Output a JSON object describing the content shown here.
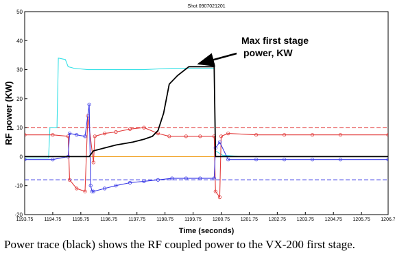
{
  "chart_data": {
    "type": "line",
    "title": "Shot 0907021201",
    "xlabel": "Time (seconds)",
    "ylabel": "RF power (KW)",
    "xlim": [
      1193.75,
      1206.7
    ],
    "ylim": [
      -20,
      50
    ],
    "x_ticks": [
      "1193.75",
      "1194.75",
      "1195.75",
      "1196.75",
      "1197.75",
      "1198.75",
      "1199.75",
      "1200.75",
      "1201.75",
      "1202.75",
      "1203.75",
      "1204.75",
      "1205.75",
      "1206.7"
    ],
    "y_ticks": [
      -20,
      -10,
      0,
      10,
      20,
      30,
      40,
      50
    ],
    "grid": false,
    "colors": {
      "black": "#000000",
      "cyan": "#33e0e6",
      "red": "#e23b3b",
      "blue": "#3a3ae6",
      "orange": "#f0a020"
    },
    "series": [
      {
        "color": "black",
        "style": "solid",
        "x": [
          1193.75,
          1195.3,
          1196.05,
          1196.2,
          1196.6,
          1197.0,
          1197.6,
          1198.0,
          1198.3,
          1198.5,
          1198.7,
          1198.9,
          1199.2,
          1199.6,
          1200.0,
          1200.3,
          1200.5,
          1200.55,
          1200.7,
          1201.5,
          1202.5,
          1203.5,
          1204.5,
          1205.5,
          1206.7
        ],
        "y": [
          0,
          0,
          0,
          2,
          3,
          4,
          5,
          6,
          7,
          9,
          15,
          25,
          28,
          31,
          31,
          31,
          31,
          0,
          0,
          0,
          0,
          0,
          0,
          0,
          0
        ]
      },
      {
        "color": "cyan",
        "style": "solid",
        "x": [
          1193.75,
          1194.6,
          1194.65,
          1194.9,
          1194.95,
          1195.2,
          1195.3,
          1195.5,
          1196.0,
          1197.0,
          1198.0,
          1199.0,
          1200.0,
          1200.5,
          1200.55,
          1200.8,
          1201.5,
          1202.5,
          1203.5,
          1204.5,
          1205.5,
          1206.7
        ],
        "y": [
          -0.5,
          -0.5,
          10,
          10,
          34,
          33.5,
          31,
          30.5,
          30,
          30,
          30,
          30.5,
          30.5,
          30.5,
          2,
          0.5,
          0,
          0,
          0,
          0,
          0,
          0
        ]
      },
      {
        "color": "red",
        "style": "solid",
        "x": [
          1193.75,
          1194.75,
          1195.3,
          1195.35,
          1195.6,
          1195.9,
          1196.0,
          1196.2,
          1196.25,
          1196.6,
          1197.0,
          1197.5,
          1198.0,
          1198.5,
          1198.9,
          1199.5,
          1200.0,
          1200.5,
          1200.55,
          1200.7,
          1200.75,
          1201.0,
          1202.0,
          1203.0,
          1204.0,
          1205.0,
          1206.7
        ],
        "y": [
          7.5,
          7.5,
          7,
          -8,
          -11,
          -12,
          14,
          -2,
          7,
          8,
          8.5,
          9.5,
          10,
          8,
          7,
          7,
          7,
          7,
          -12,
          -14,
          7,
          8,
          7.5,
          7.5,
          7.5,
          7.5,
          7.5
        ]
      },
      {
        "color": "blue",
        "style": "solid",
        "x": [
          1193.75,
          1194.75,
          1195.3,
          1195.35,
          1195.6,
          1195.9,
          1196.05,
          1196.1,
          1196.15,
          1196.2,
          1196.6,
          1197.0,
          1197.5,
          1198.0,
          1198.5,
          1199.0,
          1199.5,
          1200.0,
          1200.5,
          1200.55,
          1200.7,
          1201.0,
          1202.0,
          1203.0,
          1204.0,
          1205.0,
          1206.7
        ],
        "y": [
          -1,
          -1,
          0,
          8,
          7.5,
          7,
          18,
          -10,
          -12,
          -12,
          -11,
          -10,
          -9,
          -8.5,
          -8,
          -7.5,
          -7.5,
          -7.5,
          -7.5,
          3,
          5,
          -1,
          -1,
          -1,
          -1,
          -1,
          -1
        ]
      },
      {
        "color": "red",
        "style": "dashed",
        "x": [
          1193.75,
          1206.7
        ],
        "y": [
          10,
          10
        ]
      },
      {
        "color": "blue",
        "style": "dashed",
        "x": [
          1193.75,
          1206.7
        ],
        "y": [
          -8,
          -8
        ]
      },
      {
        "color": "orange",
        "style": "solid",
        "x": [
          1193.75,
          1206.7
        ],
        "y": [
          0,
          0
        ]
      }
    ],
    "annotation": {
      "text_lines": [
        "Max first stage",
        "power, KW"
      ],
      "arrow_to": [
        1199.95,
        32
      ]
    }
  },
  "caption": "Power trace (black) shows the RF coupled power to the VX-200 first stage."
}
